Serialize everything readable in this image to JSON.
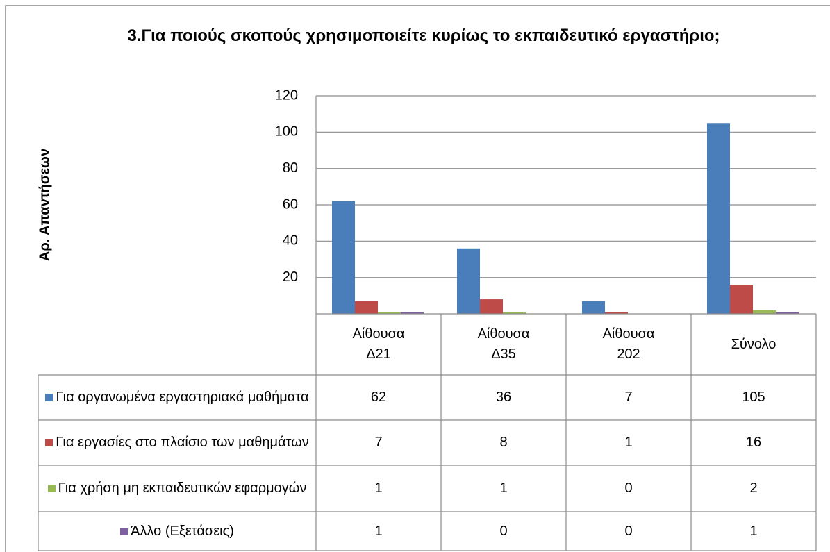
{
  "chart_data": {
    "type": "bar",
    "title": "3.Για ποιούς σκοπούς χρησιμοποιείτε κυρίως το εκπαιδευτικό εργαστήριο;",
    "y_label": "Αρ. Απαντήσεων",
    "categories": [
      "Αίθουσα Δ21",
      "Αίθουσα Δ35",
      "Αίθουσα 202",
      "Σύνολο"
    ],
    "series": [
      {
        "name": "Για οργανωμένα εργαστηριακά μαθήματα",
        "color": "#4a7ebb",
        "values": [
          62,
          36,
          7,
          105
        ]
      },
      {
        "name": "Για εργασίες στο πλαίσιο των μαθημάτων",
        "color": "#be4b48",
        "values": [
          7,
          8,
          1,
          16
        ]
      },
      {
        "name": "Για χρήση μη εκπαιδευτικών εφαρμογών",
        "color": "#98b954",
        "values": [
          1,
          1,
          0,
          2
        ]
      },
      {
        "name": "Άλλο (Εξετάσεις)",
        "color": "#7d60a0",
        "values": [
          1,
          0,
          0,
          1
        ]
      }
    ],
    "ylim": [
      0,
      120
    ],
    "yticks": [
      20,
      40,
      60,
      80,
      100,
      120
    ],
    "grid": true,
    "data_table": true
  }
}
